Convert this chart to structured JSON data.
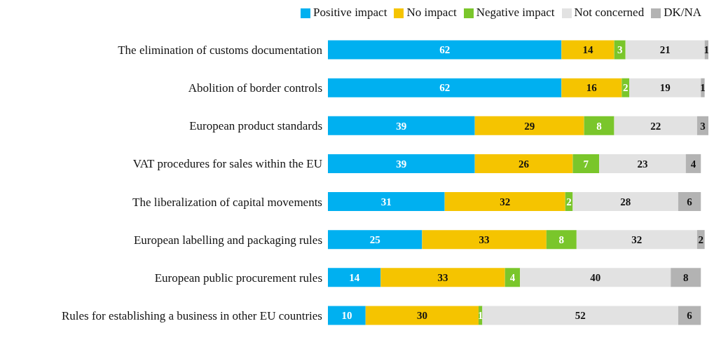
{
  "chart_data": {
    "type": "bar",
    "orientation": "horizontal",
    "stacked": true,
    "data_labels": true,
    "legend": "top right",
    "grid": false,
    "tick_labels": "y",
    "xlim": [
      0,
      101
    ],
    "categories": [
      "The elimination of customs documentation",
      "Abolition of border controls",
      "European product standards",
      "VAT procedures for sales within the EU",
      "The liberalization of capital movements",
      "European labelling and packaging rules",
      "European public procurement rules",
      "Rules for establishing a business in other EU countries"
    ],
    "series": [
      {
        "name": "Positive impact",
        "color": "#00b0f0",
        "values": [
          62,
          62,
          39,
          39,
          31,
          25,
          14,
          10
        ]
      },
      {
        "name": "No impact",
        "color": "#f5c400",
        "values": [
          14,
          16,
          29,
          26,
          32,
          33,
          33,
          30
        ]
      },
      {
        "name": "Negative impact",
        "color": "#7ac62b",
        "values": [
          3,
          2,
          8,
          7,
          2,
          8,
          4,
          1
        ]
      },
      {
        "name": "Not concerned",
        "color": "#e2e2e2",
        "values": [
          21,
          19,
          22,
          23,
          28,
          32,
          40,
          52
        ]
      },
      {
        "name": "DK/NA",
        "color": "#b3b3b3",
        "values": [
          1,
          1,
          3,
          4,
          6,
          2,
          8,
          6
        ]
      }
    ]
  }
}
